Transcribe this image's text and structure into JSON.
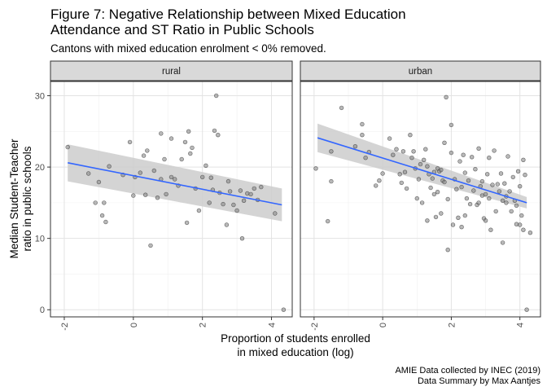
{
  "chart_data": {
    "type": "scatter",
    "title_lines": [
      "Figure 7: Negative Relationship between Mixed Education",
      "Attendance and ST Ratio in Public Schools"
    ],
    "subtitle": "Cantons with mixed education enrolment < 0% removed.",
    "xlabel_lines": [
      "Proportion of students enrolled",
      "in mixed education (log)"
    ],
    "ylabel_lines": [
      "Median Student-Teacher",
      "ratio in public schools"
    ],
    "caption_lines": [
      "AMIE Data collected by INEC (2019)",
      "Data Summary by Max Aantjes"
    ],
    "xlim": [
      -2.4,
      4.6
    ],
    "ylim": [
      -1,
      32
    ],
    "x_ticks": [
      -2,
      0,
      2,
      4
    ],
    "x_tick_labels": [
      "-2",
      "0",
      "2",
      "4"
    ],
    "y_ticks": [
      0,
      10,
      20,
      30
    ],
    "y_tick_labels": [
      "0",
      "10",
      "20",
      "30"
    ],
    "grid": true,
    "point_color": "#7f7f7f",
    "line_color": "#3366ff",
    "ribbon_color": "#cccccc",
    "panels": [
      {
        "label": "rural",
        "fit": {
          "x": [
            -1.9,
            4.3
          ],
          "y": [
            20.6,
            14.7
          ],
          "lo": [
            18.0,
            12.4
          ],
          "hi": [
            23.2,
            17.0
          ]
        },
        "points": [
          [
            -1.9,
            22.8
          ],
          [
            -1.3,
            19.1
          ],
          [
            -1.1,
            15.0
          ],
          [
            -1.0,
            17.9
          ],
          [
            -0.9,
            13.2
          ],
          [
            -0.85,
            15.0
          ],
          [
            -0.8,
            12.3
          ],
          [
            -0.7,
            20.1
          ],
          [
            -0.3,
            18.9
          ],
          [
            -0.1,
            23.5
          ],
          [
            0.0,
            16.0
          ],
          [
            0.05,
            18.6
          ],
          [
            0.2,
            19.2
          ],
          [
            0.3,
            21.6
          ],
          [
            0.35,
            16.1
          ],
          [
            0.4,
            22.3
          ],
          [
            0.5,
            9.0
          ],
          [
            0.6,
            19.5
          ],
          [
            0.7,
            15.7
          ],
          [
            0.8,
            18.3
          ],
          [
            0.9,
            21.1
          ],
          [
            0.8,
            24.7
          ],
          [
            0.95,
            16.2
          ],
          [
            1.1,
            18.6
          ],
          [
            1.2,
            18.3
          ],
          [
            1.3,
            17.4
          ],
          [
            1.1,
            24.0
          ],
          [
            1.4,
            21.1
          ],
          [
            1.5,
            23.5
          ],
          [
            1.55,
            12.2
          ],
          [
            1.6,
            25.0
          ],
          [
            1.65,
            21.9
          ],
          [
            1.7,
            22.7
          ],
          [
            1.8,
            17.0
          ],
          [
            1.9,
            13.9
          ],
          [
            2.0,
            18.6
          ],
          [
            2.1,
            20.2
          ],
          [
            2.2,
            15.0
          ],
          [
            2.25,
            18.5
          ],
          [
            2.3,
            16.8
          ],
          [
            2.4,
            30.0
          ],
          [
            2.35,
            25.1
          ],
          [
            2.45,
            24.5
          ],
          [
            2.5,
            16.4
          ],
          [
            2.6,
            14.8
          ],
          [
            2.7,
            11.9
          ],
          [
            2.75,
            18.0
          ],
          [
            2.8,
            16.6
          ],
          [
            2.9,
            14.7
          ],
          [
            3.0,
            13.9
          ],
          [
            3.1,
            16.7
          ],
          [
            3.15,
            10.0
          ],
          [
            3.2,
            15.3
          ],
          [
            3.3,
            16.3
          ],
          [
            3.4,
            16.2
          ],
          [
            3.5,
            17.0
          ],
          [
            3.6,
            15.4
          ],
          [
            3.7,
            17.2
          ],
          [
            4.1,
            13.5
          ],
          [
            4.35,
            0.0
          ]
        ]
      },
      {
        "label": "urban",
        "fit": {
          "x": [
            -1.9,
            4.2
          ],
          "y": [
            24.1,
            15.0
          ],
          "lo": [
            22.1,
            14.2
          ],
          "hi": [
            26.1,
            15.8
          ]
        },
        "points": [
          [
            -1.95,
            19.8
          ],
          [
            -1.6,
            12.4
          ],
          [
            -1.5,
            18.0
          ],
          [
            -1.5,
            22.2
          ],
          [
            -1.2,
            28.3
          ],
          [
            -0.8,
            22.9
          ],
          [
            -0.6,
            24.5
          ],
          [
            -0.5,
            21.3
          ],
          [
            -0.4,
            22.1
          ],
          [
            -0.6,
            26.0
          ],
          [
            -0.2,
            17.4
          ],
          [
            -0.1,
            18.1
          ],
          [
            0.0,
            19.1
          ],
          [
            0.2,
            24.0
          ],
          [
            0.3,
            21.7
          ],
          [
            0.4,
            22.5
          ],
          [
            0.5,
            19.0
          ],
          [
            0.55,
            17.8
          ],
          [
            0.6,
            22.2
          ],
          [
            0.65,
            19.3
          ],
          [
            0.7,
            17.0
          ],
          [
            0.8,
            24.5
          ],
          [
            0.85,
            21.3
          ],
          [
            0.9,
            22.2
          ],
          [
            0.95,
            19.8
          ],
          [
            1.0,
            15.6
          ],
          [
            1.05,
            18.3
          ],
          [
            1.1,
            20.4
          ],
          [
            1.15,
            15.0
          ],
          [
            1.2,
            21.0
          ],
          [
            1.25,
            22.5
          ],
          [
            1.3,
            20.1
          ],
          [
            1.35,
            19.0
          ],
          [
            1.4,
            17.1
          ],
          [
            1.45,
            18.4
          ],
          [
            1.5,
            16.2
          ],
          [
            1.5,
            19.3
          ],
          [
            1.55,
            13.0
          ],
          [
            1.6,
            16.5
          ],
          [
            1.6,
            19.8
          ],
          [
            1.65,
            19.4
          ],
          [
            1.7,
            19.6
          ],
          [
            1.7,
            13.5
          ],
          [
            1.75,
            18.1
          ],
          [
            1.8,
            23.4
          ],
          [
            1.85,
            29.8
          ],
          [
            1.9,
            15.5
          ],
          [
            1.9,
            8.4
          ],
          [
            2.0,
            22.0
          ],
          [
            2.0,
            25.9
          ],
          [
            2.05,
            11.9
          ],
          [
            2.1,
            18.3
          ],
          [
            2.15,
            16.9
          ],
          [
            2.2,
            12.9
          ],
          [
            2.25,
            20.8
          ],
          [
            2.3,
            17.2
          ],
          [
            2.35,
            21.7
          ],
          [
            2.4,
            19.2
          ],
          [
            2.45,
            15.6
          ],
          [
            2.5,
            18.1
          ],
          [
            2.55,
            14.8
          ],
          [
            2.6,
            21.4
          ],
          [
            2.65,
            16.7
          ],
          [
            2.7,
            19.7
          ],
          [
            2.75,
            14.7
          ],
          [
            2.8,
            22.6
          ],
          [
            2.85,
            17.3
          ],
          [
            2.9,
            18.0
          ],
          [
            2.95,
            12.8
          ],
          [
            3.0,
            16.2
          ],
          [
            3.05,
            19.0
          ],
          [
            3.1,
            21.3
          ],
          [
            3.1,
            15.6
          ],
          [
            3.15,
            11.2
          ],
          [
            3.2,
            17.5
          ],
          [
            3.25,
            22.3
          ],
          [
            3.3,
            13.8
          ],
          [
            3.35,
            17.6
          ],
          [
            3.4,
            16.6
          ],
          [
            3.45,
            19.1
          ],
          [
            3.5,
            15.3
          ],
          [
            3.5,
            9.4
          ],
          [
            3.55,
            17.7
          ],
          [
            3.6,
            15.0
          ],
          [
            3.65,
            21.5
          ],
          [
            3.7,
            16.6
          ],
          [
            3.75,
            13.8
          ],
          [
            3.8,
            18.6
          ],
          [
            3.85,
            15.3
          ],
          [
            3.9,
            14.6
          ],
          [
            3.9,
            12.0
          ],
          [
            3.95,
            19.4
          ],
          [
            4.0,
            11.9
          ],
          [
            4.0,
            17.3
          ],
          [
            4.05,
            13.2
          ],
          [
            4.1,
            11.2
          ],
          [
            4.1,
            21.0
          ],
          [
            4.15,
            18.9
          ],
          [
            4.2,
            0.0
          ],
          [
            4.3,
            10.8
          ],
          [
            3.0,
            12.5
          ],
          [
            2.4,
            13.2
          ],
          [
            1.3,
            12.5
          ],
          [
            2.3,
            11.6
          ],
          [
            3.6,
            15.9
          ],
          [
            2.8,
            15.0
          ],
          [
            1.8,
            17.9
          ],
          [
            2.9,
            16.0
          ]
        ]
      }
    ]
  }
}
